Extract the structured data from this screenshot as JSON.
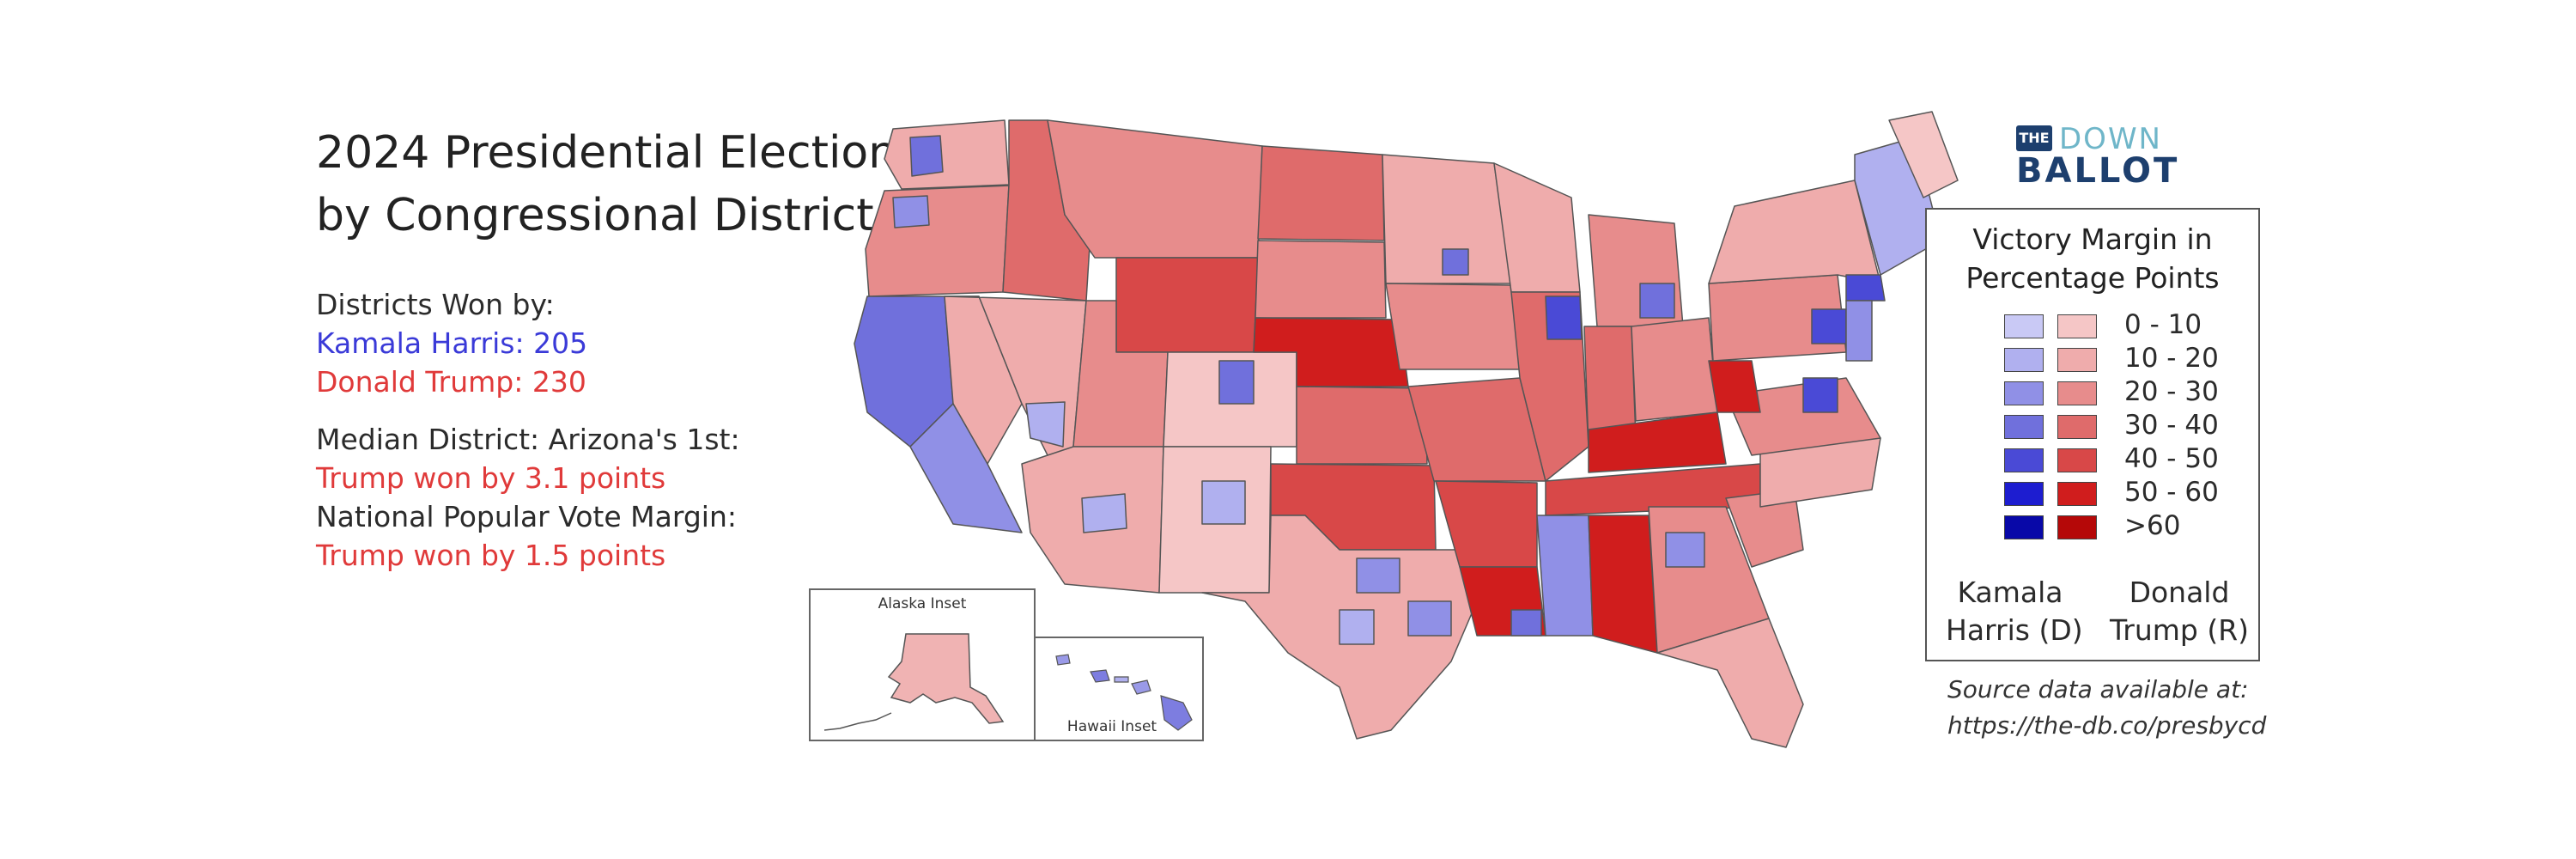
{
  "title": {
    "line1": "2024 Presidential Election",
    "line2": "by Congressional District"
  },
  "districts": {
    "heading": "Districts Won by:",
    "harris": "Kamala Harris: 205",
    "trump": "Donald Trump: 230"
  },
  "median": {
    "label": "Median District: Arizona's 1st:",
    "value": "Trump won by 3.1 points"
  },
  "popular": {
    "label": "National Popular Vote Margin:",
    "value": "Trump won by 1.5 points"
  },
  "logo": {
    "the": "THE",
    "down": "DOWN",
    "ballot": "BALLOT"
  },
  "legend": {
    "title_line1": "Victory Margin in",
    "title_line2": "Percentage Points",
    "rows": [
      {
        "label": "0 - 10",
        "blue": "#c9c9f5",
        "red": "#f5c6c6"
      },
      {
        "label": "10 - 20",
        "blue": "#b0b0ef",
        "red": "#efacac"
      },
      {
        "label": "20 - 30",
        "blue": "#9090e6",
        "red": "#e78c8c"
      },
      {
        "label": "30 - 40",
        "blue": "#7070dc",
        "red": "#df6b6b"
      },
      {
        "label": "40 - 50",
        "blue": "#4a4ad6",
        "red": "#d84848"
      },
      {
        "label": "50 - 60",
        "blue": "#1d1dd0",
        "red": "#d01d1d"
      },
      {
        "label": ">60",
        "blue": "#0808a8",
        "red": "#b50808"
      }
    ],
    "harris_line1": "Kamala",
    "harris_line2": "Harris (D)",
    "trump_line1": "Donald",
    "trump_line2": "Trump (R)"
  },
  "insets": {
    "alaska": "Alaska Inset",
    "hawaii": "Hawaii Inset"
  },
  "source": {
    "line1": "Source data available at:",
    "line2": "https://the-db.co/presbycd"
  }
}
